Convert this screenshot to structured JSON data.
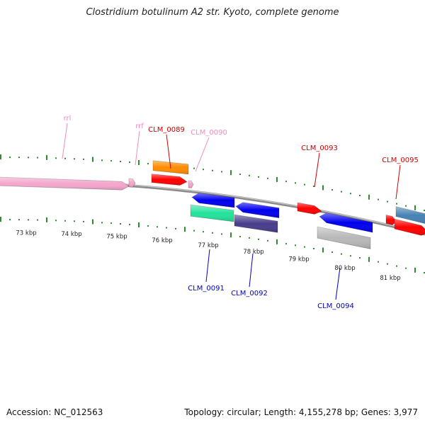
{
  "title": "Clostridium botulinum A2 str. Kyoto, complete genome",
  "footer": {
    "accession": "Accession: NC_012563",
    "summary": "Topology: circular; Length: 4,155,278 bp; Genes: 3,977"
  },
  "colors": {
    "backbone": "#8a8a8a",
    "tick_dots": "#2e8b2e",
    "rna": "#f4a6cc",
    "label_red": "#cc0000",
    "label_pink": "#f08cbe",
    "label_blue": "#0000bb"
  },
  "ruler": [
    {
      "label": "73 kbp"
    },
    {
      "label": "74 kbp"
    },
    {
      "label": "75 kbp"
    },
    {
      "label": "76 kbp"
    },
    {
      "label": "77 kbp"
    },
    {
      "label": "78 kbp"
    },
    {
      "label": "79 kbp"
    },
    {
      "label": "80 kbp"
    },
    {
      "label": "81 kbp"
    }
  ],
  "features": [
    {
      "id": "rrl",
      "label": "rrl",
      "strand": "+",
      "color": "#f4a6cc",
      "label_color": "#f08cbe"
    },
    {
      "id": "rrf",
      "label": "rrf",
      "strand": "+",
      "color": "#f4a6cc",
      "label_color": "#f08cbe"
    },
    {
      "id": "CLM_0089",
      "label": "CLM_0089",
      "strand": "+",
      "color": "#ff0000",
      "label_color": "#cc0000"
    },
    {
      "id": "CLM_0089_cog",
      "label": "",
      "strand": "+",
      "color": "#ff8c00",
      "label_color": ""
    },
    {
      "id": "CLM_0090",
      "label": "CLM_0090",
      "strand": "+",
      "color": "#f4a6cc",
      "label_color": "#f08cbe"
    },
    {
      "id": "CLM_0091",
      "label": "CLM_0091",
      "strand": "-",
      "color": "#0000ee",
      "label_color": "#0000bb"
    },
    {
      "id": "CLM_0091_cog",
      "label": "",
      "strand": "-",
      "color": "#22e39a",
      "label_color": ""
    },
    {
      "id": "CLM_0092",
      "label": "CLM_0092",
      "strand": "-",
      "color": "#0000ee",
      "label_color": "#0000bb"
    },
    {
      "id": "CLM_0092_cog",
      "label": "",
      "strand": "-",
      "color": "#483d8b",
      "label_color": ""
    },
    {
      "id": "CLM_0093",
      "label": "CLM_0093",
      "strand": "+",
      "color": "#ff0000",
      "label_color": "#cc0000"
    },
    {
      "id": "CLM_0094",
      "label": "CLM_0094",
      "strand": "-",
      "color": "#0000ee",
      "label_color": "#0000bb"
    },
    {
      "id": "CLM_0094_cog",
      "label": "",
      "strand": "-",
      "color": "#b8b8b8",
      "label_color": ""
    },
    {
      "id": "CLM_0095",
      "label": "CLM_0095",
      "strand": "+",
      "color": "#ff0000",
      "label_color": "#cc0000"
    },
    {
      "id": "CLM_0095_cog",
      "label": "",
      "strand": "+",
      "color": "#4682b4",
      "label_color": ""
    }
  ]
}
